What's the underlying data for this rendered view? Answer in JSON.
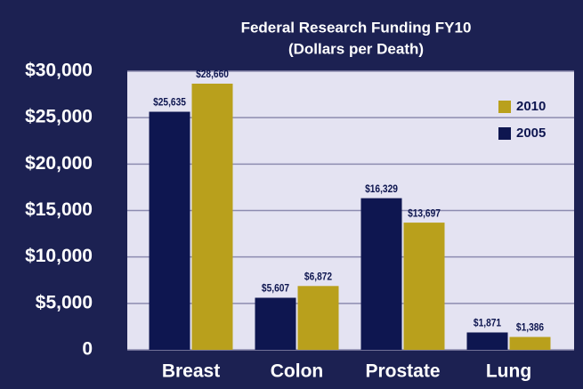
{
  "chart_data": {
    "type": "bar",
    "title": "Federal Research Funding FY10",
    "subtitle": "(Dollars per Death)",
    "categories": [
      "Breast",
      "Colon",
      "Prostate",
      "Lung"
    ],
    "series": [
      {
        "name": "2005",
        "color": "#0e1650",
        "values": [
          25635,
          5607,
          16329,
          1871
        ],
        "value_labels": [
          "$25,635",
          "$5,607",
          "$16,329",
          "$1,871"
        ]
      },
      {
        "name": "2010",
        "color": "#b9a01c",
        "values": [
          28660,
          6872,
          13697,
          1386
        ],
        "value_labels": [
          "$28,660",
          "$6,872",
          "$13,697",
          "$1,386"
        ]
      }
    ],
    "ylim": [
      0,
      30000
    ],
    "yticks": [
      0,
      {
        "value": 5000,
        "label": "$5,000"
      },
      {
        "value": 10000,
        "label": "$10,000"
      },
      {
        "value": 15000,
        "label": "$15,000"
      },
      {
        "value": 20000,
        "label": "$20,000"
      },
      {
        "value": 25000,
        "label": "$25,000"
      },
      {
        "value": 30000,
        "label": "$30,000"
      }
    ],
    "grid": true,
    "legend": "upper right"
  }
}
